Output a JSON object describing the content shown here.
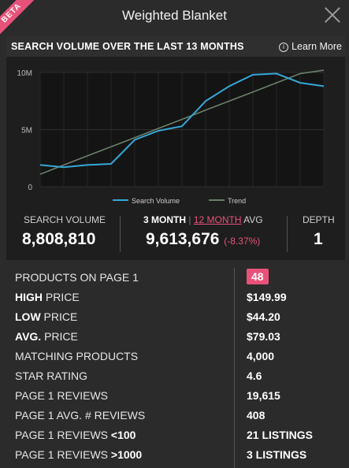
{
  "header": {
    "beta": "BETA",
    "title": "Weighted Blanket"
  },
  "panel": {
    "title": "SEARCH VOLUME OVER THE LAST 13 MONTHS",
    "learn_more": "Learn More"
  },
  "chart_data": {
    "type": "line",
    "x": [
      1,
      2,
      3,
      4,
      5,
      6,
      7,
      8,
      9,
      10,
      11,
      12,
      13
    ],
    "series": [
      {
        "name": "Search Volume",
        "values": [
          1.9,
          1.7,
          1.9,
          2.0,
          4.1,
          4.9,
          5.3,
          7.5,
          8.8,
          9.8,
          9.9,
          9.1,
          8.8
        ]
      },
      {
        "name": "Trend",
        "values": [
          1.1,
          1.9,
          2.7,
          3.5,
          4.3,
          5.1,
          5.9,
          6.7,
          7.5,
          8.3,
          9.1,
          9.9,
          10.7
        ]
      }
    ],
    "y_ticks": [
      "0",
      "5M",
      "10M"
    ],
    "ylim": [
      0,
      10
    ],
    "legend_position": "bottom",
    "colors": {
      "search": "#35a7d8",
      "trend": "#6b7f6b"
    }
  },
  "stats": {
    "search_volume_label": "SEARCH VOLUME",
    "search_volume_value": "8,808,810",
    "three_month": "3 MONTH",
    "sep": "|",
    "twelve_month": "12 MONTH",
    "avg": "AVG",
    "avg_value": "9,613,676",
    "avg_change": "(-8.37%)",
    "depth_label": "DEPTH",
    "depth_value": "1"
  },
  "rows": [
    {
      "label": "PRODUCTS ON PAGE 1",
      "value": "48",
      "badge": true
    },
    {
      "bold": "HIGH",
      "label": " PRICE",
      "value": "$149.99"
    },
    {
      "bold": "LOW",
      "label": " PRICE",
      "value": "$44.20"
    },
    {
      "bold": "AVG.",
      "label": " PRICE",
      "value": "$79.03"
    },
    {
      "label": "MATCHING PRODUCTS",
      "value": "4,000"
    },
    {
      "label": "STAR RATING",
      "value": "4.6"
    },
    {
      "label": "PAGE 1 REVIEWS",
      "value": "19,615"
    },
    {
      "label": "PAGE 1 AVG. # REVIEWS",
      "value": "408"
    },
    {
      "label": "PAGE 1 REVIEWS ",
      "bold_tail": "<100",
      "value": "21 LISTINGS"
    },
    {
      "label": "PAGE 1 REVIEWS ",
      "bold_tail": ">1000",
      "value": "3 LISTINGS"
    }
  ]
}
